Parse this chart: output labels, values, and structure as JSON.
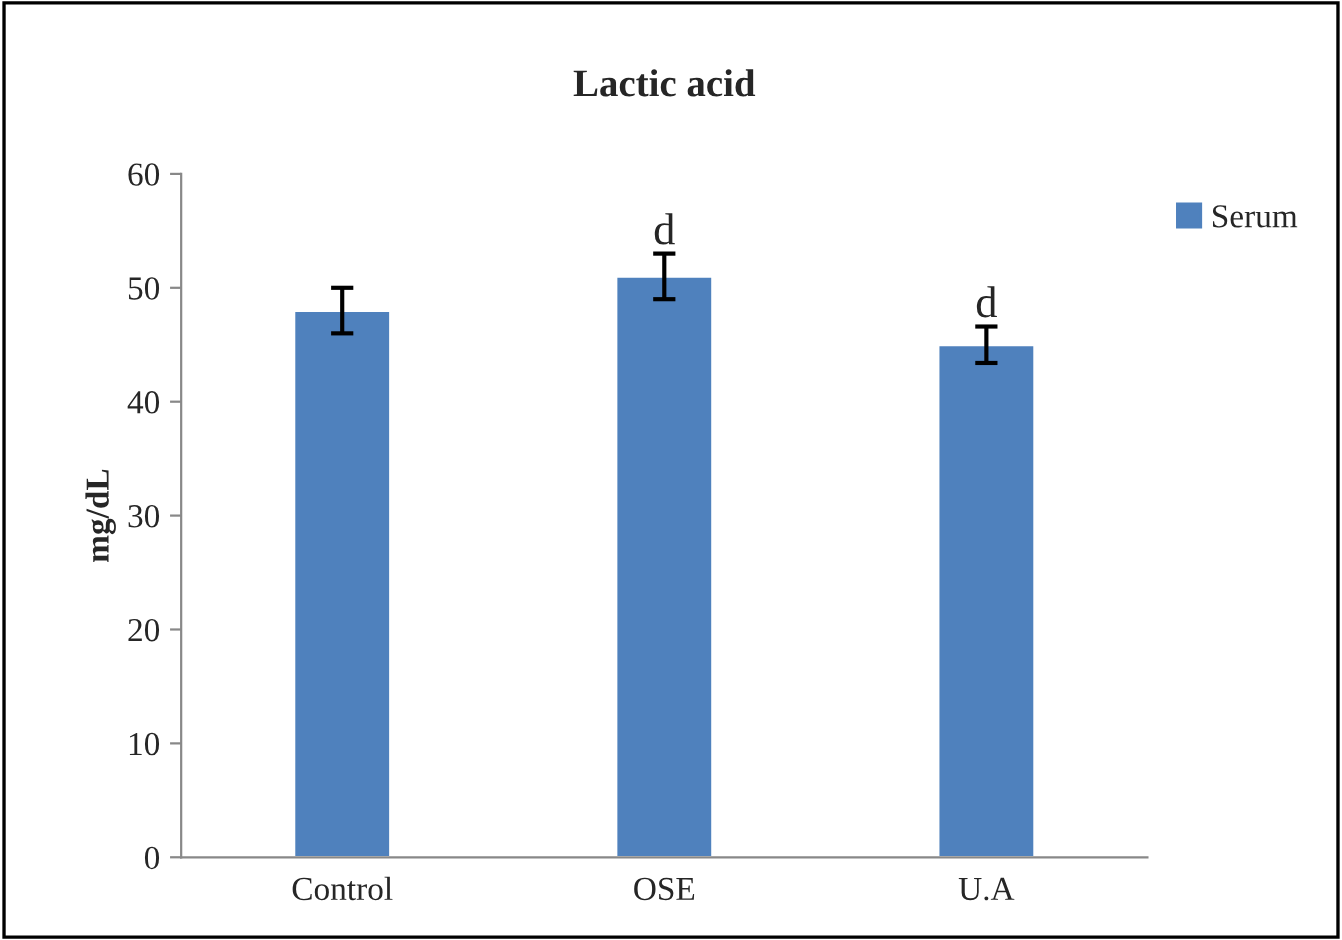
{
  "chart_data": {
    "type": "bar",
    "title": "Lactic acid",
    "ylabel": "mg/dL",
    "categories": [
      "Control",
      "OSE",
      "U.A"
    ],
    "series": [
      {
        "name": "Serum",
        "color": "#4f81bd",
        "values": [
          48,
          51,
          45
        ],
        "errors": [
          2,
          2,
          1.6
        ]
      }
    ],
    "annotations": [
      {
        "text": "d",
        "x": "OSE",
        "y": 53
      },
      {
        "text": "d",
        "x": "U.A",
        "y": 46.6
      }
    ],
    "ylim": [
      0,
      60
    ],
    "yticks": [
      0,
      10,
      20,
      30,
      40,
      50,
      60
    ],
    "grid": false,
    "legend": "top right"
  }
}
